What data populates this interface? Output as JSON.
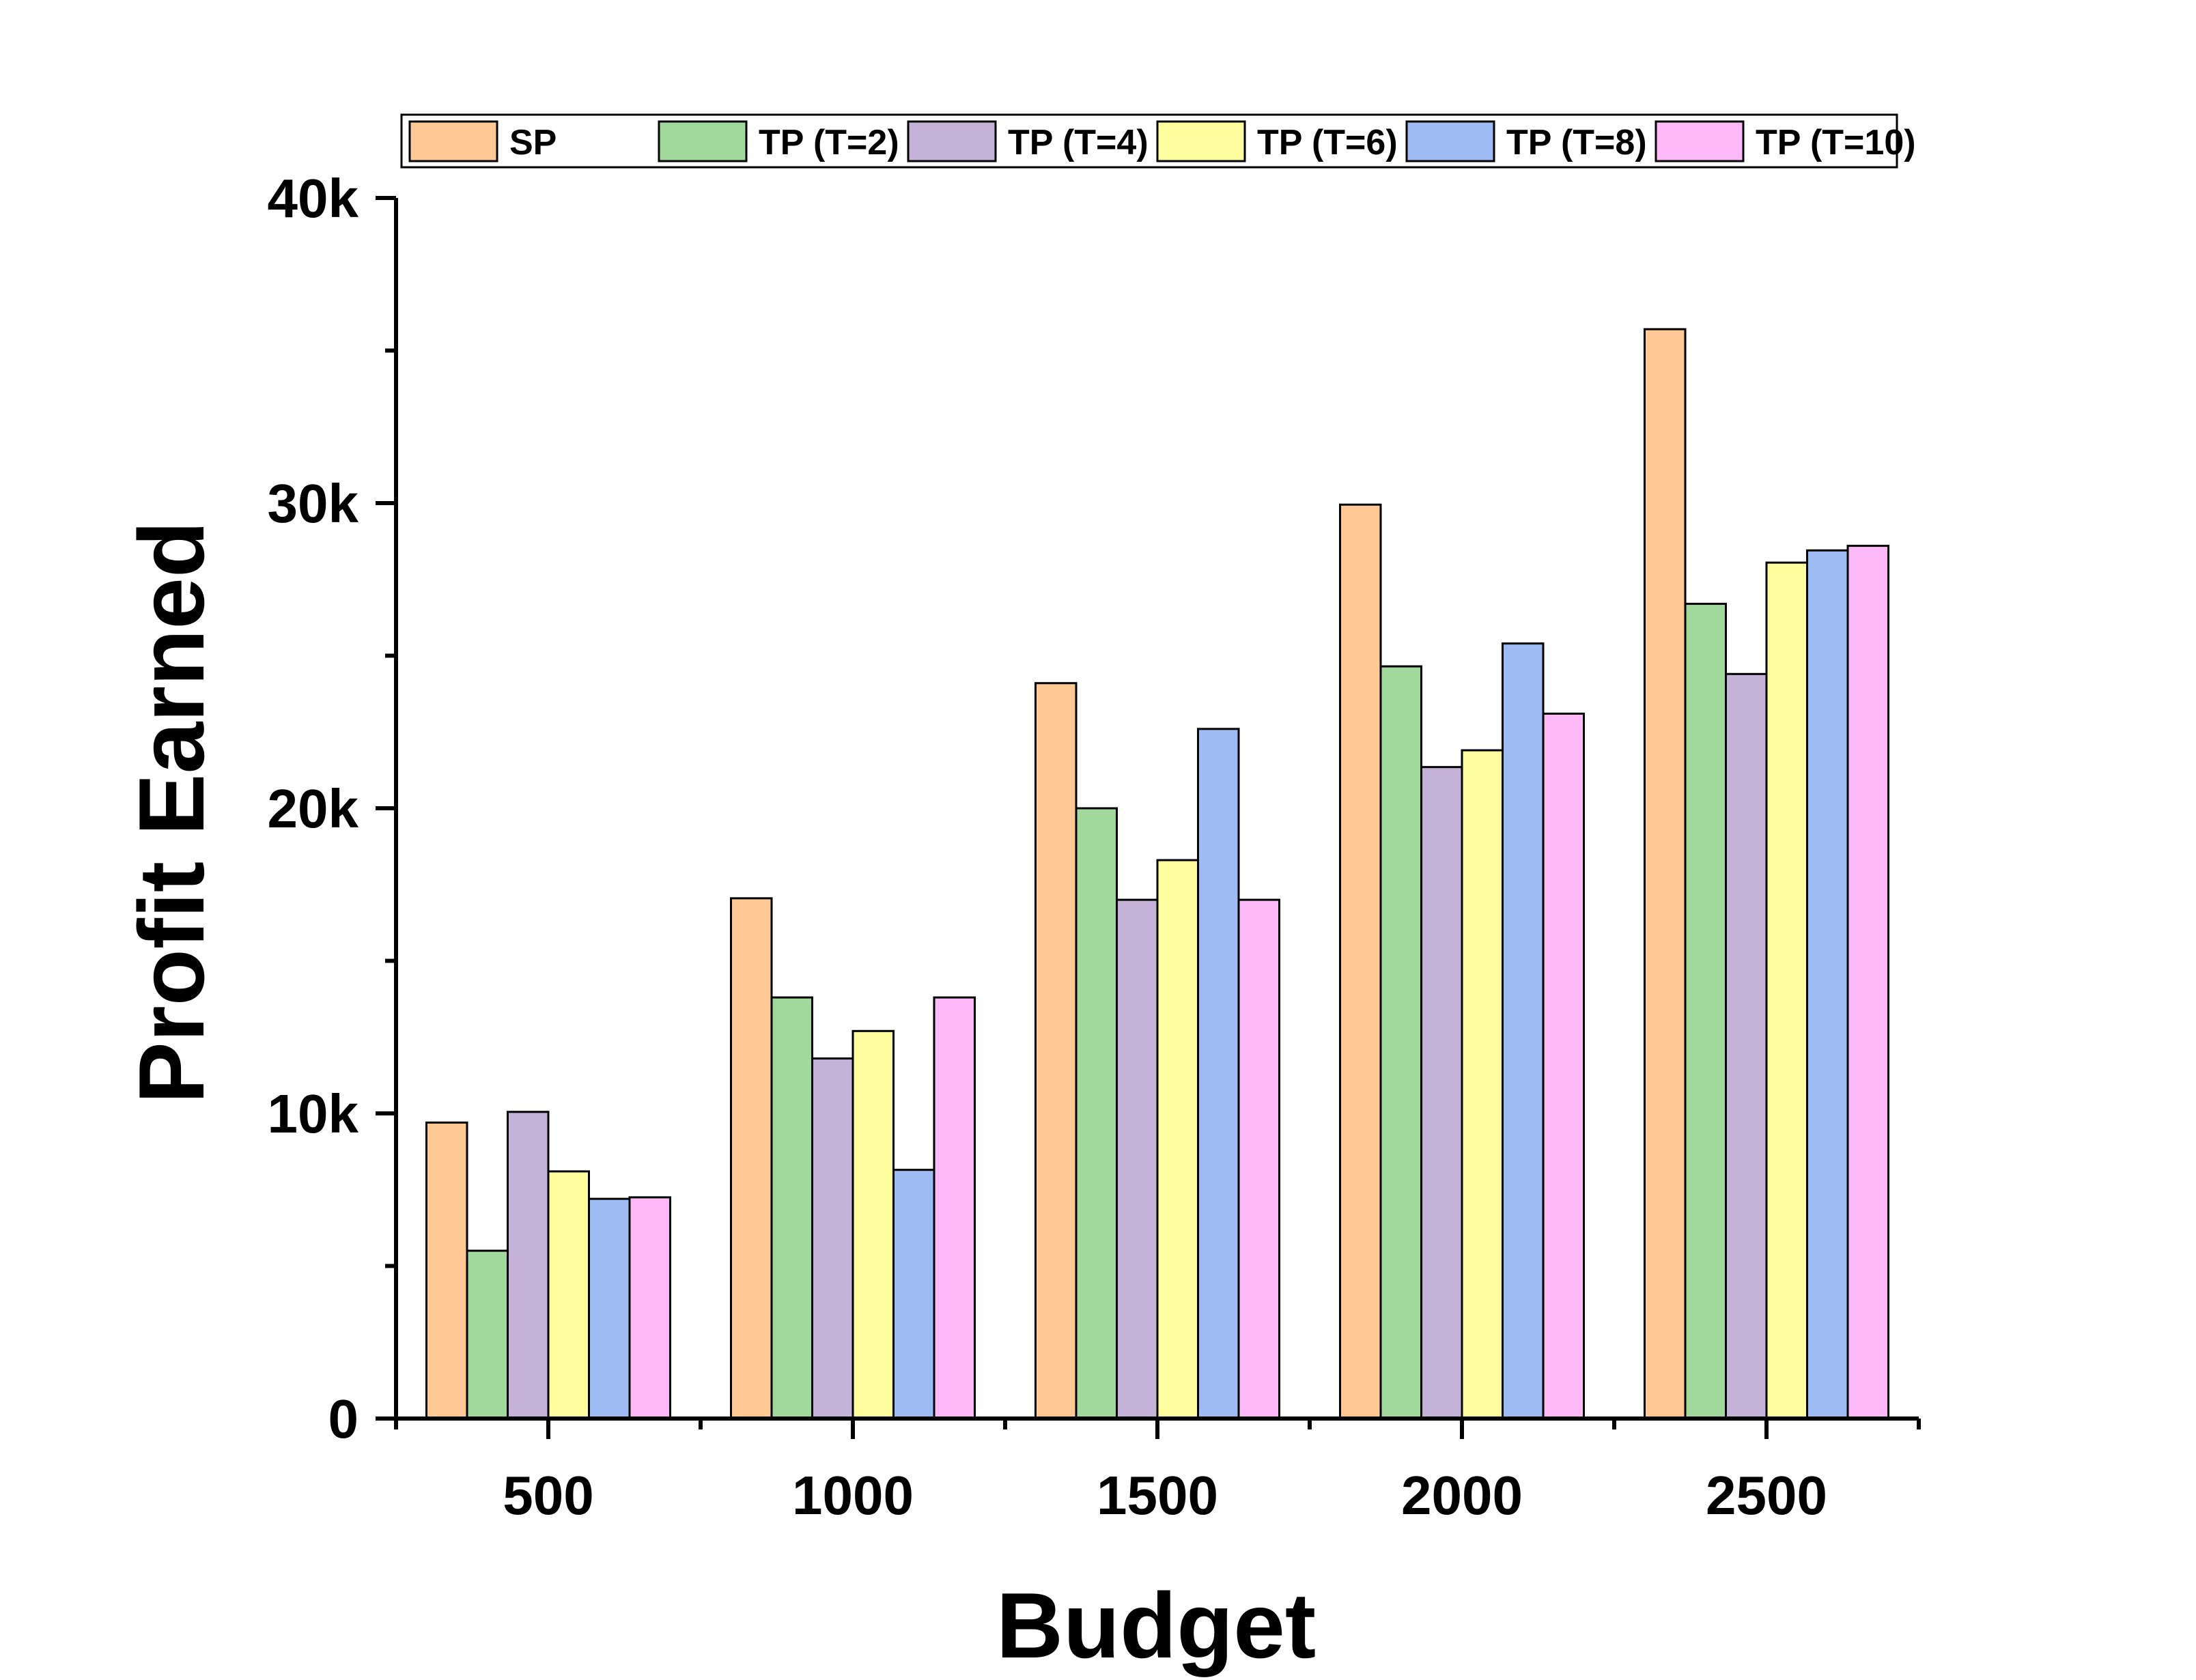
{
  "chart_data": {
    "type": "bar",
    "title": "",
    "xlabel": "Budget",
    "ylabel": "Profit Earned",
    "categories": [
      "500",
      "1000",
      "1500",
      "2000",
      "2500"
    ],
    "ylim": [
      0,
      40000
    ],
    "yticks": [
      {
        "value": 0,
        "label": "0"
      },
      {
        "value": 10000,
        "label": "10k"
      },
      {
        "value": 20000,
        "label": "20k"
      },
      {
        "value": 30000,
        "label": "30k"
      },
      {
        "value": 40000,
        "label": "40k"
      }
    ],
    "legend_position": "top",
    "grid": false,
    "series": [
      {
        "name": "SP",
        "color": "#FFC894",
        "values": [
          9700,
          17050,
          24100,
          29950,
          35700
        ]
      },
      {
        "name": "TP (T=2)",
        "color": "#A0D99B",
        "values": [
          5500,
          13800,
          20000,
          24650,
          26700
        ]
      },
      {
        "name": "TP (T=4)",
        "color": "#C4B2D8",
        "values": [
          10050,
          11800,
          17000,
          21350,
          24400
        ]
      },
      {
        "name": "TP (T=6)",
        "color": "#FFFE9E",
        "values": [
          8100,
          12700,
          18300,
          21900,
          28050
        ]
      },
      {
        "name": "TP (T=8)",
        "color": "#9EBCF3",
        "values": [
          7200,
          8150,
          22600,
          25400,
          28450
        ]
      },
      {
        "name": "TP (T=10)",
        "color": "#FDB8F8",
        "values": [
          7250,
          13800,
          17000,
          23100,
          28600
        ]
      }
    ]
  }
}
